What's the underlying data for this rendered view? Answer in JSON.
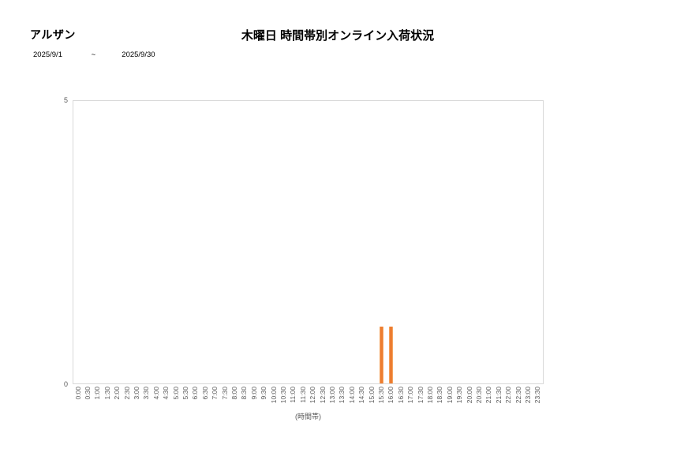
{
  "header": {
    "report_name": "アルザン",
    "date_from": "2025/9/1",
    "date_separator": "~",
    "date_to": "2025/9/30"
  },
  "chart_data": {
    "type": "bar",
    "title": "木曜日 時間帯別オンライン入荷状況",
    "xlabel": "(時間帯)",
    "ylabel": "",
    "ylim": [
      0,
      5
    ],
    "y_ticks": [
      5,
      0
    ],
    "grid": false,
    "legend": false,
    "bar_color": "#ED7D31",
    "bar_edge_color": "#F5A25D",
    "axis_text_color": "#595959",
    "plot_border_color": "#D9D9D9",
    "categories": [
      "0:00",
      "0:30",
      "1:00",
      "1:30",
      "2:00",
      "2:30",
      "3:00",
      "3:30",
      "4:00",
      "4:30",
      "5:00",
      "5:30",
      "6:00",
      "6:30",
      "7:00",
      "7:30",
      "8:00",
      "8:30",
      "9:00",
      "9:30",
      "10:00",
      "10:30",
      "11:00",
      "11:30",
      "12:00",
      "12:30",
      "13:00",
      "13:30",
      "14:00",
      "14:30",
      "15:00",
      "15:30",
      "16:00",
      "16:30",
      "17:00",
      "17:30",
      "18:00",
      "18:30",
      "19:00",
      "19:30",
      "20:00",
      "20:30",
      "21:00",
      "21:30",
      "22:00",
      "22:30",
      "23:00",
      "23:30"
    ],
    "values": [
      0,
      0,
      0,
      0,
      0,
      0,
      0,
      0,
      0,
      0,
      0,
      0,
      0,
      0,
      0,
      0,
      0,
      0,
      0,
      0,
      0,
      0,
      0,
      0,
      0,
      0,
      0,
      0,
      0,
      0,
      0,
      1,
      1,
      0,
      0,
      0,
      0,
      0,
      0,
      0,
      0,
      0,
      0,
      0,
      0,
      0,
      0,
      0
    ]
  }
}
